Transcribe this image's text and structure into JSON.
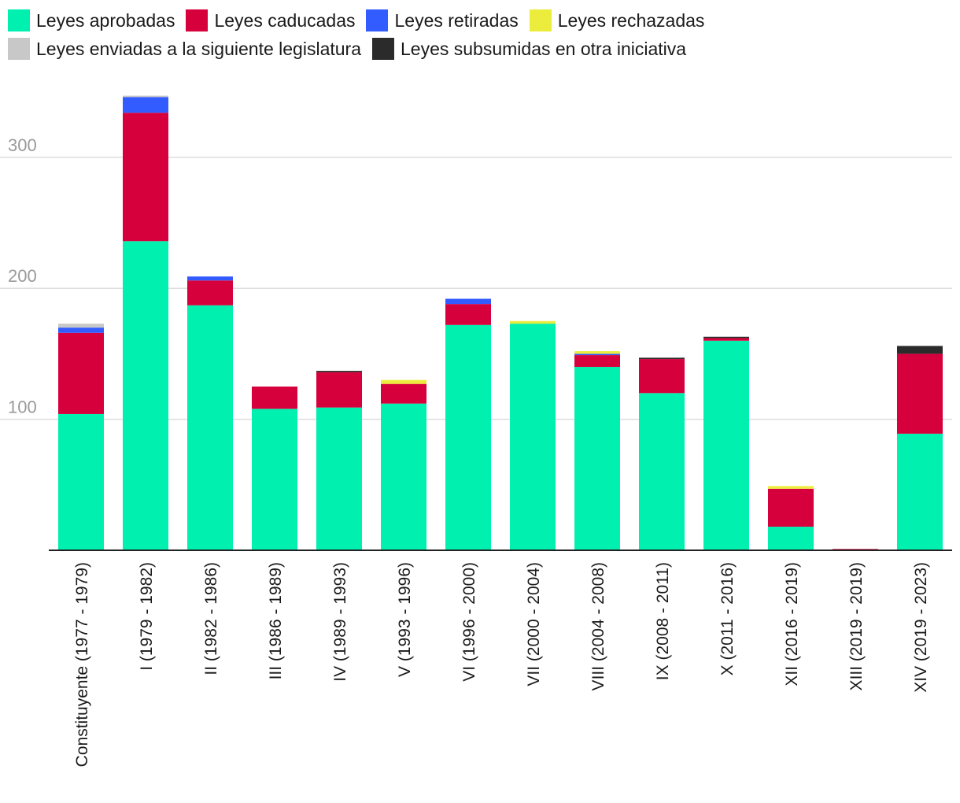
{
  "chart_data": {
    "type": "bar",
    "stacked": true,
    "title": "",
    "xlabel": "",
    "ylabel": "",
    "ylim": [
      0,
      350
    ],
    "yticks": [
      100,
      200,
      300
    ],
    "grid": true,
    "legend_position": "top-left",
    "categories": [
      "Constituyente (1977 - 1979)",
      "I (1979 - 1982)",
      "II (1982 - 1986)",
      "III (1986 - 1989)",
      "IV (1989 - 1993)",
      "V (1993 - 1996)",
      "VI (1996 - 2000)",
      "VII (2000 - 2004)",
      "VIII (2004 - 2008)",
      "IX (2008 - 2011)",
      "X (2011 - 2016)",
      "XII (2016 - 2019)",
      "XIII (2019 - 2019)",
      "XIV (2019 - 2023)"
    ],
    "series": [
      {
        "name": "Leyes aprobadas",
        "color": "#00f0b0",
        "values": [
          104,
          236,
          187,
          108,
          109,
          112,
          172,
          173,
          140,
          120,
          160,
          18,
          0,
          89
        ]
      },
      {
        "name": "Leyes caducadas",
        "color": "#d6003c",
        "values": [
          62,
          98,
          19,
          17,
          27,
          15,
          16,
          0,
          9,
          26,
          2,
          29,
          1,
          61
        ]
      },
      {
        "name": "Leyes retiradas",
        "color": "#325cff",
        "values": [
          4,
          12,
          3,
          0,
          0,
          0,
          4,
          0,
          1,
          0,
          0,
          0,
          0,
          0
        ]
      },
      {
        "name": "Leyes rechazadas",
        "color": "#ecec3c",
        "values": [
          0,
          0,
          0,
          0,
          0,
          3,
          0,
          2,
          2,
          0,
          0,
          2,
          0,
          0
        ]
      },
      {
        "name": "Leyes enviadas a la siguiente legislatura",
        "color": "#c8c8c8",
        "values": [
          3,
          1,
          0,
          0,
          0,
          0,
          0,
          0,
          0,
          0,
          0,
          0,
          0,
          0
        ]
      },
      {
        "name": "Leyes subsumidas en otra iniciativa",
        "color": "#2b2b2b",
        "values": [
          0,
          0,
          0,
          0,
          1,
          0,
          0,
          0,
          0,
          1,
          1,
          0,
          0,
          6
        ]
      }
    ]
  }
}
